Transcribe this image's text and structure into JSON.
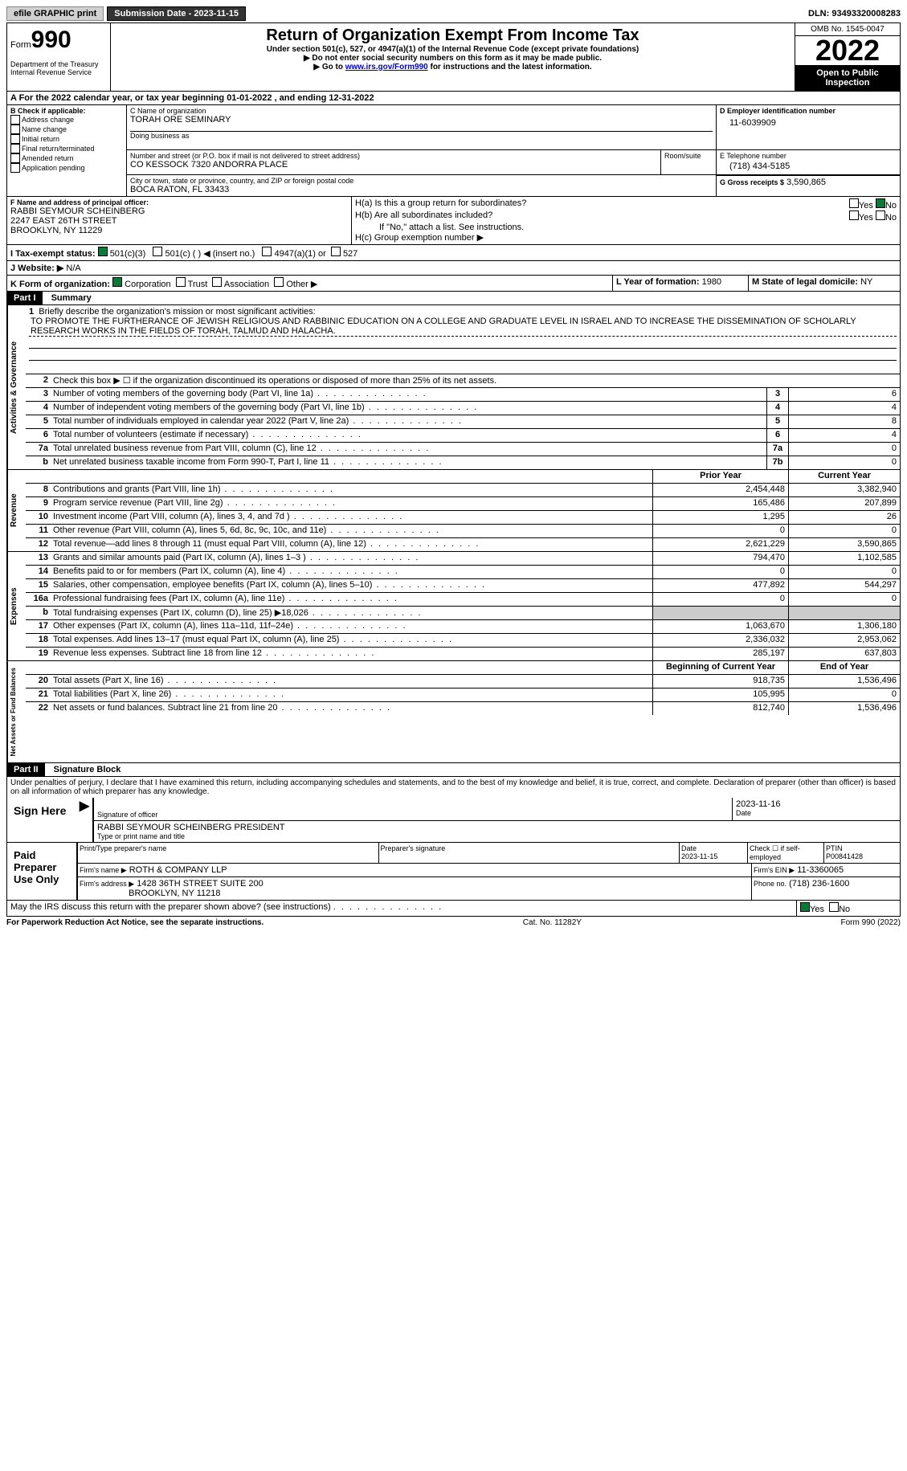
{
  "top": {
    "efile": "efile GRAPHIC print",
    "submission": "Submission Date - 2023-11-15",
    "dln": "DLN: 93493320008283"
  },
  "header": {
    "form_word": "Form",
    "form_num": "990",
    "title": "Return of Organization Exempt From Income Tax",
    "subtitle": "Under section 501(c), 527, or 4947(a)(1) of the Internal Revenue Code (except private foundations)",
    "note1": "▶ Do not enter social security numbers on this form as it may be made public.",
    "note2_pre": "▶ Go to ",
    "note2_link": "www.irs.gov/Form990",
    "note2_post": " for instructions and the latest information.",
    "dept": "Department of the Treasury",
    "irs": "Internal Revenue Service",
    "omb": "OMB No. 1545-0047",
    "year": "2022",
    "inspect": "Open to Public Inspection"
  },
  "a_line": "A For the 2022 calendar year, or tax year beginning 01-01-2022   , and ending 12-31-2022",
  "b": {
    "label": "B Check if applicable:",
    "opts": [
      "Address change",
      "Name change",
      "Initial return",
      "Final return/terminated",
      "Amended return",
      "Application pending"
    ]
  },
  "c": {
    "name_label": "C Name of organization",
    "name": "TORAH ORE SEMINARY",
    "dba": "Doing business as",
    "addr_label": "Number and street (or P.O. box if mail is not delivered to street address)",
    "addr": "CO KESSOCK 7320 ANDORRA PLACE",
    "room": "Room/suite",
    "city_label": "City or town, state or province, country, and ZIP or foreign postal code",
    "city": "BOCA RATON, FL  33433"
  },
  "d": {
    "label": "D Employer identification number",
    "val": "11-6039909"
  },
  "e": {
    "label": "E Telephone number",
    "val": "(718) 434-5185"
  },
  "g": {
    "label": "G Gross receipts $",
    "val": "3,590,865"
  },
  "f": {
    "label": "F  Name and address of principal officer:",
    "name": "RABBI SEYMOUR SCHEINBERG",
    "addr1": "2247 EAST 26TH STREET",
    "addr2": "BROOKLYN, NY  11229"
  },
  "h": {
    "a": "H(a)  Is this a group return for subordinates?",
    "b": "H(b)  Are all subordinates included?",
    "b_note": "If \"No,\" attach a list. See instructions.",
    "c": "H(c)  Group exemption number ▶",
    "yes": "Yes",
    "no": "No"
  },
  "i": {
    "label": "I  Tax-exempt status:",
    "opts": [
      "501(c)(3)",
      "501(c) (  ) ◀ (insert no.)",
      "4947(a)(1) or",
      "527"
    ]
  },
  "j": {
    "label": "J  Website: ▶",
    "val": "N/A"
  },
  "k": {
    "label": "K Form of organization:",
    "opts": [
      "Corporation",
      "Trust",
      "Association",
      "Other ▶"
    ]
  },
  "l": {
    "label": "L Year of formation:",
    "val": "1980"
  },
  "m": {
    "label": "M State of legal domicile:",
    "val": "NY"
  },
  "part1": {
    "header": "Part I",
    "title": "Summary",
    "line1_label": "Briefly describe the organization's mission or most significant activities:",
    "mission": "TO PROMOTE THE FURTHERANCE OF JEWISH RELIGIOUS AND RABBINIC EDUCATION ON A COLLEGE AND GRADUATE LEVEL IN ISRAEL AND TO INCREASE THE DISSEMINATION OF SCHOLARLY RESEARCH WORKS IN THE FIELDS OF TORAH, TALMUD AND HALACHA.",
    "line2": "Check this box ▶ ☐  if the organization discontinued its operations or disposed of more than 25% of its net assets.",
    "gov_label": "Activities & Governance",
    "rev_label": "Revenue",
    "exp_label": "Expenses",
    "net_label": "Net Assets or Fund Balances",
    "prior_head": "Prior Year",
    "current_head": "Current Year",
    "begin_head": "Beginning of Current Year",
    "end_head": "End of Year",
    "lines_gov": [
      {
        "n": "3",
        "t": "Number of voting members of the governing body (Part VI, line 1a)",
        "box": "3",
        "v": "6"
      },
      {
        "n": "4",
        "t": "Number of independent voting members of the governing body (Part VI, line 1b)",
        "box": "4",
        "v": "4"
      },
      {
        "n": "5",
        "t": "Total number of individuals employed in calendar year 2022 (Part V, line 2a)",
        "box": "5",
        "v": "8"
      },
      {
        "n": "6",
        "t": "Total number of volunteers (estimate if necessary)",
        "box": "6",
        "v": "4"
      },
      {
        "n": "7a",
        "t": "Total unrelated business revenue from Part VIII, column (C), line 12",
        "box": "7a",
        "v": "0"
      },
      {
        "n": "b",
        "t": "Net unrelated business taxable income from Form 990-T, Part I, line 11",
        "box": "7b",
        "v": "0"
      }
    ],
    "lines_rev": [
      {
        "n": "8",
        "t": "Contributions and grants (Part VIII, line 1h)",
        "p": "2,454,448",
        "c": "3,382,940"
      },
      {
        "n": "9",
        "t": "Program service revenue (Part VIII, line 2g)",
        "p": "165,486",
        "c": "207,899"
      },
      {
        "n": "10",
        "t": "Investment income (Part VIII, column (A), lines 3, 4, and 7d )",
        "p": "1,295",
        "c": "26"
      },
      {
        "n": "11",
        "t": "Other revenue (Part VIII, column (A), lines 5, 6d, 8c, 9c, 10c, and 11e)",
        "p": "0",
        "c": "0"
      },
      {
        "n": "12",
        "t": "Total revenue—add lines 8 through 11 (must equal Part VIII, column (A), line 12)",
        "p": "2,621,229",
        "c": "3,590,865"
      }
    ],
    "lines_exp": [
      {
        "n": "13",
        "t": "Grants and similar amounts paid (Part IX, column (A), lines 1–3 )",
        "p": "794,470",
        "c": "1,102,585"
      },
      {
        "n": "14",
        "t": "Benefits paid to or for members (Part IX, column (A), line 4)",
        "p": "0",
        "c": "0"
      },
      {
        "n": "15",
        "t": "Salaries, other compensation, employee benefits (Part IX, column (A), lines 5–10)",
        "p": "477,892",
        "c": "544,297"
      },
      {
        "n": "16a",
        "t": "Professional fundraising fees (Part IX, column (A), line 11e)",
        "p": "0",
        "c": "0"
      },
      {
        "n": "b",
        "t": "Total fundraising expenses (Part IX, column (D), line 25) ▶18,026",
        "p": "",
        "c": "",
        "shaded": true
      },
      {
        "n": "17",
        "t": "Other expenses (Part IX, column (A), lines 11a–11d, 11f–24e)",
        "p": "1,063,670",
        "c": "1,306,180"
      },
      {
        "n": "18",
        "t": "Total expenses. Add lines 13–17 (must equal Part IX, column (A), line 25)",
        "p": "2,336,032",
        "c": "2,953,062"
      },
      {
        "n": "19",
        "t": "Revenue less expenses. Subtract line 18 from line 12",
        "p": "285,197",
        "c": "637,803"
      }
    ],
    "lines_net": [
      {
        "n": "20",
        "t": "Total assets (Part X, line 16)",
        "p": "918,735",
        "c": "1,536,496"
      },
      {
        "n": "21",
        "t": "Total liabilities (Part X, line 26)",
        "p": "105,995",
        "c": "0"
      },
      {
        "n": "22",
        "t": "Net assets or fund balances. Subtract line 21 from line 20",
        "p": "812,740",
        "c": "1,536,496"
      }
    ]
  },
  "part2": {
    "header": "Part II",
    "title": "Signature Block",
    "penalty": "Under penalties of perjury, I declare that I have examined this return, including accompanying schedules and statements, and to the best of my knowledge and belief, it is true, correct, and complete. Declaration of preparer (other than officer) is based on all information of which preparer has any knowledge.",
    "sign_here": "Sign Here",
    "sig_officer": "Signature of officer",
    "sig_date": "2023-11-16",
    "sig_date_label": "Date",
    "sig_name": "RABBI SEYMOUR SCHEINBERG  PRESIDENT",
    "sig_name_label": "Type or print name and title",
    "paid_label": "Paid Preparer Use Only",
    "prep_name_label": "Print/Type preparer's name",
    "prep_sig_label": "Preparer's signature",
    "prep_date_label": "Date",
    "prep_date": "2023-11-15",
    "check_if": "Check ☐ if self-employed",
    "ptin_label": "PTIN",
    "ptin": "P00841428",
    "firm_name_label": "Firm's name    ▶",
    "firm_name": "ROTH & COMPANY LLP",
    "firm_ein_label": "Firm's EIN ▶",
    "firm_ein": "11-3360065",
    "firm_addr_label": "Firm's address ▶",
    "firm_addr": "1428 36TH STREET SUITE 200",
    "firm_city": "BROOKLYN, NY  11218",
    "phone_label": "Phone no.",
    "phone": "(718) 236-1600",
    "discuss": "May the IRS discuss this return with the preparer shown above? (see instructions)",
    "yes": "Yes",
    "no": "No"
  },
  "footer": {
    "left": "For Paperwork Reduction Act Notice, see the separate instructions.",
    "mid": "Cat. No. 11282Y",
    "right": "Form 990 (2022)"
  }
}
